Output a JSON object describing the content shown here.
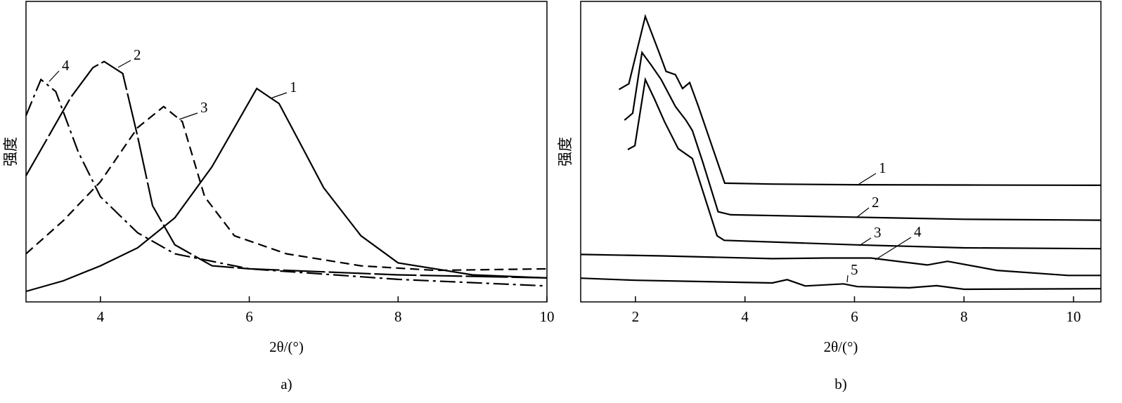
{
  "chart_data": [
    {
      "type": "line",
      "caption": "a)",
      "xlabel": "2θ/(°)",
      "ylabel": "强度",
      "xlim": [
        3,
        10
      ],
      "ylim": [
        0,
        100
      ],
      "xticks": [
        4,
        6,
        8,
        10
      ],
      "series": [
        {
          "name": "1",
          "color": "#000",
          "dash": "solid",
          "x": [
            3,
            3.5,
            4,
            4.5,
            5,
            5.5,
            5.8,
            6.1,
            6.4,
            6.7,
            7,
            7.5,
            8,
            9,
            10
          ],
          "values": [
            3.5,
            7,
            12,
            18,
            28,
            45,
            58,
            71,
            66,
            52,
            38,
            22,
            13,
            9,
            8
          ]
        },
        {
          "name": "2",
          "color": "#000",
          "dash": "long-dash",
          "x": [
            3,
            3.3,
            3.6,
            3.9,
            4.05,
            4.3,
            4.5,
            4.7,
            5,
            5.5,
            6,
            7,
            8,
            10
          ],
          "values": [
            42,
            55,
            68,
            78,
            80,
            76,
            55,
            32,
            19,
            12,
            11,
            10,
            9,
            8
          ]
        },
        {
          "name": "3",
          "color": "#000",
          "dash": "dashed",
          "x": [
            3,
            3.5,
            4,
            4.5,
            4.85,
            5.1,
            5.4,
            5.8,
            6.5,
            7.5,
            8.5,
            10
          ],
          "values": [
            16,
            27,
            40,
            58,
            65,
            60,
            35,
            22,
            16,
            12,
            10.5,
            11
          ]
        },
        {
          "name": "4",
          "color": "#000",
          "dash": "dash-dot",
          "x": [
            3,
            3.2,
            3.4,
            3.7,
            4,
            4.5,
            5,
            6,
            8,
            10
          ],
          "values": [
            62,
            74,
            70,
            50,
            35,
            23,
            16,
            11,
            7.5,
            5.3
          ]
        }
      ]
    },
    {
      "type": "line",
      "caption": "b)",
      "xlabel": "2θ/(°)",
      "ylabel": "强度",
      "xlim": [
        1,
        10.5
      ],
      "ylim": [
        0,
        100
      ],
      "xticks": [
        2,
        4,
        6,
        8,
        10
      ],
      "series": [
        {
          "name": "1",
          "color": "#000",
          "dash": "solid",
          "x": [
            1.7,
            1.88,
            2.18,
            2.44,
            2.56,
            2.73,
            2.86,
            2.99,
            3.15,
            3.63,
            4.5,
            6,
            8,
            10.5
          ],
          "values": [
            70.7,
            72.6,
            95,
            82.6,
            76.7,
            75.6,
            71,
            73,
            65,
            39.5,
            39.2,
            39,
            38.9,
            38.8
          ]
        },
        {
          "name": "2",
          "color": "#000",
          "dash": "solid",
          "x": [
            1.8,
            1.95,
            2.12,
            2.28,
            2.47,
            2.73,
            2.92,
            3.04,
            3.23,
            3.51,
            3.74,
            6,
            8,
            10.5
          ],
          "values": [
            60.5,
            62.8,
            83,
            79,
            74,
            65,
            60.5,
            57,
            46.5,
            30,
            29,
            28.2,
            27.5,
            27.2
          ]
        },
        {
          "name": "3",
          "color": "#000",
          "dash": "solid",
          "x": [
            1.86,
            1.99,
            2.18,
            2.35,
            2.53,
            2.78,
            3.04,
            3.49,
            3.62,
            6,
            8,
            10.5
          ],
          "values": [
            50.7,
            52,
            74,
            67.4,
            60,
            51,
            47.7,
            22,
            20.5,
            19,
            18,
            17.7
          ]
        },
        {
          "name": "4",
          "color": "#000",
          "dash": "solid",
          "x": [
            1,
            2.5,
            4.5,
            5.5,
            6.3,
            7.33,
            7.7,
            8.6,
            9.9,
            10.5
          ],
          "values": [
            15.8,
            15.3,
            14.4,
            14.6,
            14.6,
            12.3,
            13.5,
            10.5,
            8.8,
            8.8
          ]
        },
        {
          "name": "5",
          "color": "#000",
          "dash": "solid",
          "x": [
            1,
            2,
            4.5,
            4.77,
            5.1,
            5.8,
            6.05,
            7,
            7.5,
            8,
            10.5
          ],
          "values": [
            7.9,
            7.2,
            6.3,
            7.4,
            5.3,
            6,
            5.1,
            4.7,
            5.4,
            4.2,
            4.4
          ]
        }
      ]
    }
  ]
}
